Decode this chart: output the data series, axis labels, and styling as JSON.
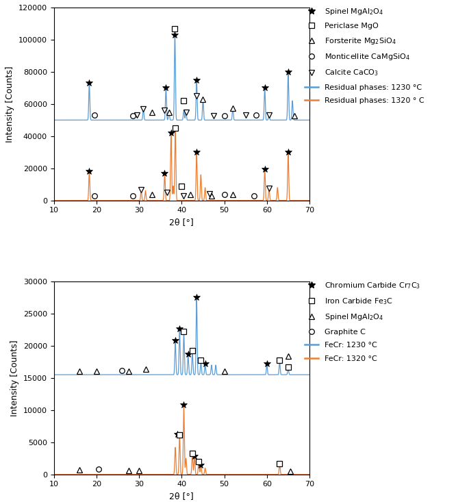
{
  "fig_width": 6.85,
  "fig_height": 7.33,
  "blue_color": "#5B9BD5",
  "orange_color": "#ED7D31",
  "subplot_a": {
    "xlim": [
      10,
      70
    ],
    "ylim": [
      0,
      120000
    ],
    "yticks": [
      0,
      20000,
      40000,
      60000,
      80000,
      100000,
      120000
    ],
    "xticks": [
      10,
      20,
      30,
      40,
      50,
      60,
      70
    ],
    "xlabel": "2θ [°]",
    "ylabel": "Intensity [Counts]",
    "blue_baseline": 50000,
    "orange_baseline": 0,
    "blue_peaks": [
      [
        18.3,
        73000
      ],
      [
        36.3,
        70000
      ],
      [
        38.4,
        103000
      ],
      [
        43.5,
        75000
      ],
      [
        59.5,
        70000
      ],
      [
        65.0,
        80000
      ],
      [
        66.0,
        62000
      ],
      [
        31.0,
        57000
      ],
      [
        37.0,
        55000
      ],
      [
        40.5,
        56000
      ],
      [
        41.0,
        55000
      ],
      [
        45.0,
        63000
      ],
      [
        52.0,
        57500
      ],
      [
        60.5,
        53000
      ]
    ],
    "orange_peaks": [
      [
        18.3,
        18000
      ],
      [
        36.0,
        17000
      ],
      [
        37.5,
        42000
      ],
      [
        38.5,
        45000
      ],
      [
        43.5,
        30000
      ],
      [
        59.5,
        19500
      ],
      [
        65.0,
        30000
      ],
      [
        30.5,
        6500
      ],
      [
        31.5,
        6000
      ],
      [
        38.0,
        9000
      ],
      [
        44.5,
        16000
      ],
      [
        45.5,
        8000
      ],
      [
        60.5,
        7500
      ],
      [
        62.5,
        8000
      ]
    ],
    "spinel_markers": [
      [
        18.3,
        73000,
        "blue"
      ],
      [
        36.3,
        70000,
        "blue"
      ],
      [
        38.4,
        103000,
        "blue"
      ],
      [
        43.5,
        75000,
        "blue"
      ],
      [
        59.5,
        70000,
        "blue"
      ],
      [
        65.0,
        80000,
        "blue"
      ],
      [
        18.3,
        18000,
        "orange"
      ],
      [
        36.0,
        17000,
        "orange"
      ],
      [
        37.5,
        42000,
        "orange"
      ],
      [
        43.5,
        30000,
        "orange"
      ],
      [
        59.5,
        19500,
        "orange"
      ],
      [
        65.0,
        30000,
        "orange"
      ]
    ],
    "periclase_markers": [
      [
        38.4,
        107000,
        "blue"
      ],
      [
        40.5,
        62000,
        "blue"
      ],
      [
        38.5,
        45000,
        "orange"
      ],
      [
        40.0,
        9000,
        "orange"
      ]
    ],
    "forsterite_markers": [
      [
        33.0,
        55000,
        "blue"
      ],
      [
        37.0,
        55000,
        "blue"
      ],
      [
        45.0,
        63000,
        "blue"
      ],
      [
        52.0,
        57500,
        "blue"
      ],
      [
        66.5,
        52500,
        "blue"
      ],
      [
        33.0,
        3500,
        "orange"
      ],
      [
        42.0,
        3500,
        "orange"
      ],
      [
        47.0,
        3000,
        "orange"
      ],
      [
        52.0,
        3500,
        "orange"
      ]
    ],
    "monticellite_markers": [
      [
        19.5,
        53000,
        "blue"
      ],
      [
        28.5,
        52500,
        "blue"
      ],
      [
        50.0,
        52500,
        "blue"
      ],
      [
        57.5,
        53000,
        "blue"
      ],
      [
        19.5,
        3000,
        "orange"
      ],
      [
        28.5,
        3000,
        "orange"
      ],
      [
        50.0,
        3500,
        "orange"
      ],
      [
        57.0,
        3000,
        "orange"
      ]
    ],
    "calcite_markers": [
      [
        29.5,
        53000,
        "blue"
      ],
      [
        31.0,
        57000,
        "blue"
      ],
      [
        36.0,
        56000,
        "blue"
      ],
      [
        41.0,
        55000,
        "blue"
      ],
      [
        43.5,
        65000,
        "blue"
      ],
      [
        47.5,
        52500,
        "blue"
      ],
      [
        55.0,
        53000,
        "blue"
      ],
      [
        60.5,
        53000,
        "blue"
      ],
      [
        30.5,
        6500,
        "orange"
      ],
      [
        36.5,
        5000,
        "orange"
      ],
      [
        40.5,
        3000,
        "orange"
      ],
      [
        46.5,
        4000,
        "orange"
      ],
      [
        60.5,
        7500,
        "orange"
      ]
    ],
    "extra_periclase_blue": [
      [
        38.4,
        107000
      ]
    ],
    "extra_periclase_orange": [
      [
        38.5,
        45000
      ]
    ]
  },
  "subplot_b": {
    "xlim": [
      10,
      70
    ],
    "ylim": [
      0,
      30000
    ],
    "yticks": [
      0,
      5000,
      10000,
      15000,
      20000,
      25000,
      30000
    ],
    "xticks": [
      10,
      20,
      30,
      40,
      50,
      60,
      70
    ],
    "xlabel": "2θ [°]",
    "ylabel": "Intensity [Counts]",
    "blue_baseline": 15500,
    "orange_baseline": 0,
    "blue_peaks": [
      [
        38.5,
        20500
      ],
      [
        39.5,
        22500
      ],
      [
        40.5,
        22000
      ],
      [
        41.5,
        18500
      ],
      [
        42.5,
        19000
      ],
      [
        43.5,
        27500
      ],
      [
        44.5,
        17500
      ],
      [
        45.5,
        17000
      ],
      [
        47.0,
        17000
      ],
      [
        48.0,
        17000
      ],
      [
        60.0,
        17000
      ],
      [
        63.0,
        17500
      ],
      [
        65.0,
        16500
      ]
    ],
    "orange_peaks": [
      [
        38.5,
        4200
      ],
      [
        39.5,
        6000
      ],
      [
        40.5,
        10500
      ],
      [
        41.0,
        2500
      ],
      [
        42.5,
        3200
      ],
      [
        43.0,
        2800
      ],
      [
        44.0,
        2000
      ],
      [
        44.5,
        1500
      ],
      [
        45.5,
        1000
      ],
      [
        63.0,
        1600
      ]
    ],
    "chromium_markers": [
      [
        38.5,
        20800,
        "blue"
      ],
      [
        39.5,
        22700,
        "blue"
      ],
      [
        41.5,
        18700,
        "blue"
      ],
      [
        43.5,
        27500,
        "blue"
      ],
      [
        45.5,
        17200,
        "blue"
      ],
      [
        60.0,
        17200,
        "blue"
      ],
      [
        39.0,
        6200,
        "orange"
      ],
      [
        40.5,
        10800,
        "orange"
      ],
      [
        43.0,
        2800,
        "orange"
      ],
      [
        44.5,
        1500,
        "orange"
      ]
    ],
    "iron_markers": [
      [
        40.5,
        22200,
        "blue"
      ],
      [
        42.5,
        19200,
        "blue"
      ],
      [
        44.5,
        17700,
        "blue"
      ],
      [
        63.0,
        17700,
        "blue"
      ],
      [
        65.0,
        16700,
        "blue"
      ],
      [
        39.5,
        6100,
        "orange"
      ],
      [
        42.5,
        3300,
        "orange"
      ],
      [
        44.0,
        2000,
        "orange"
      ],
      [
        63.0,
        1700,
        "orange"
      ]
    ],
    "spinel2_markers": [
      [
        16.0,
        16000,
        "blue"
      ],
      [
        20.0,
        16000,
        "blue"
      ],
      [
        27.5,
        16000,
        "blue"
      ],
      [
        31.5,
        16400,
        "blue"
      ],
      [
        50.0,
        16000,
        "blue"
      ],
      [
        65.0,
        18400,
        "blue"
      ],
      [
        16.0,
        700,
        "orange"
      ],
      [
        27.5,
        600,
        "orange"
      ],
      [
        30.0,
        600,
        "orange"
      ],
      [
        65.5,
        500,
        "orange"
      ]
    ],
    "graphite_markers": [
      [
        26.0,
        16200,
        "blue"
      ],
      [
        20.5,
        800,
        "orange"
      ]
    ]
  }
}
